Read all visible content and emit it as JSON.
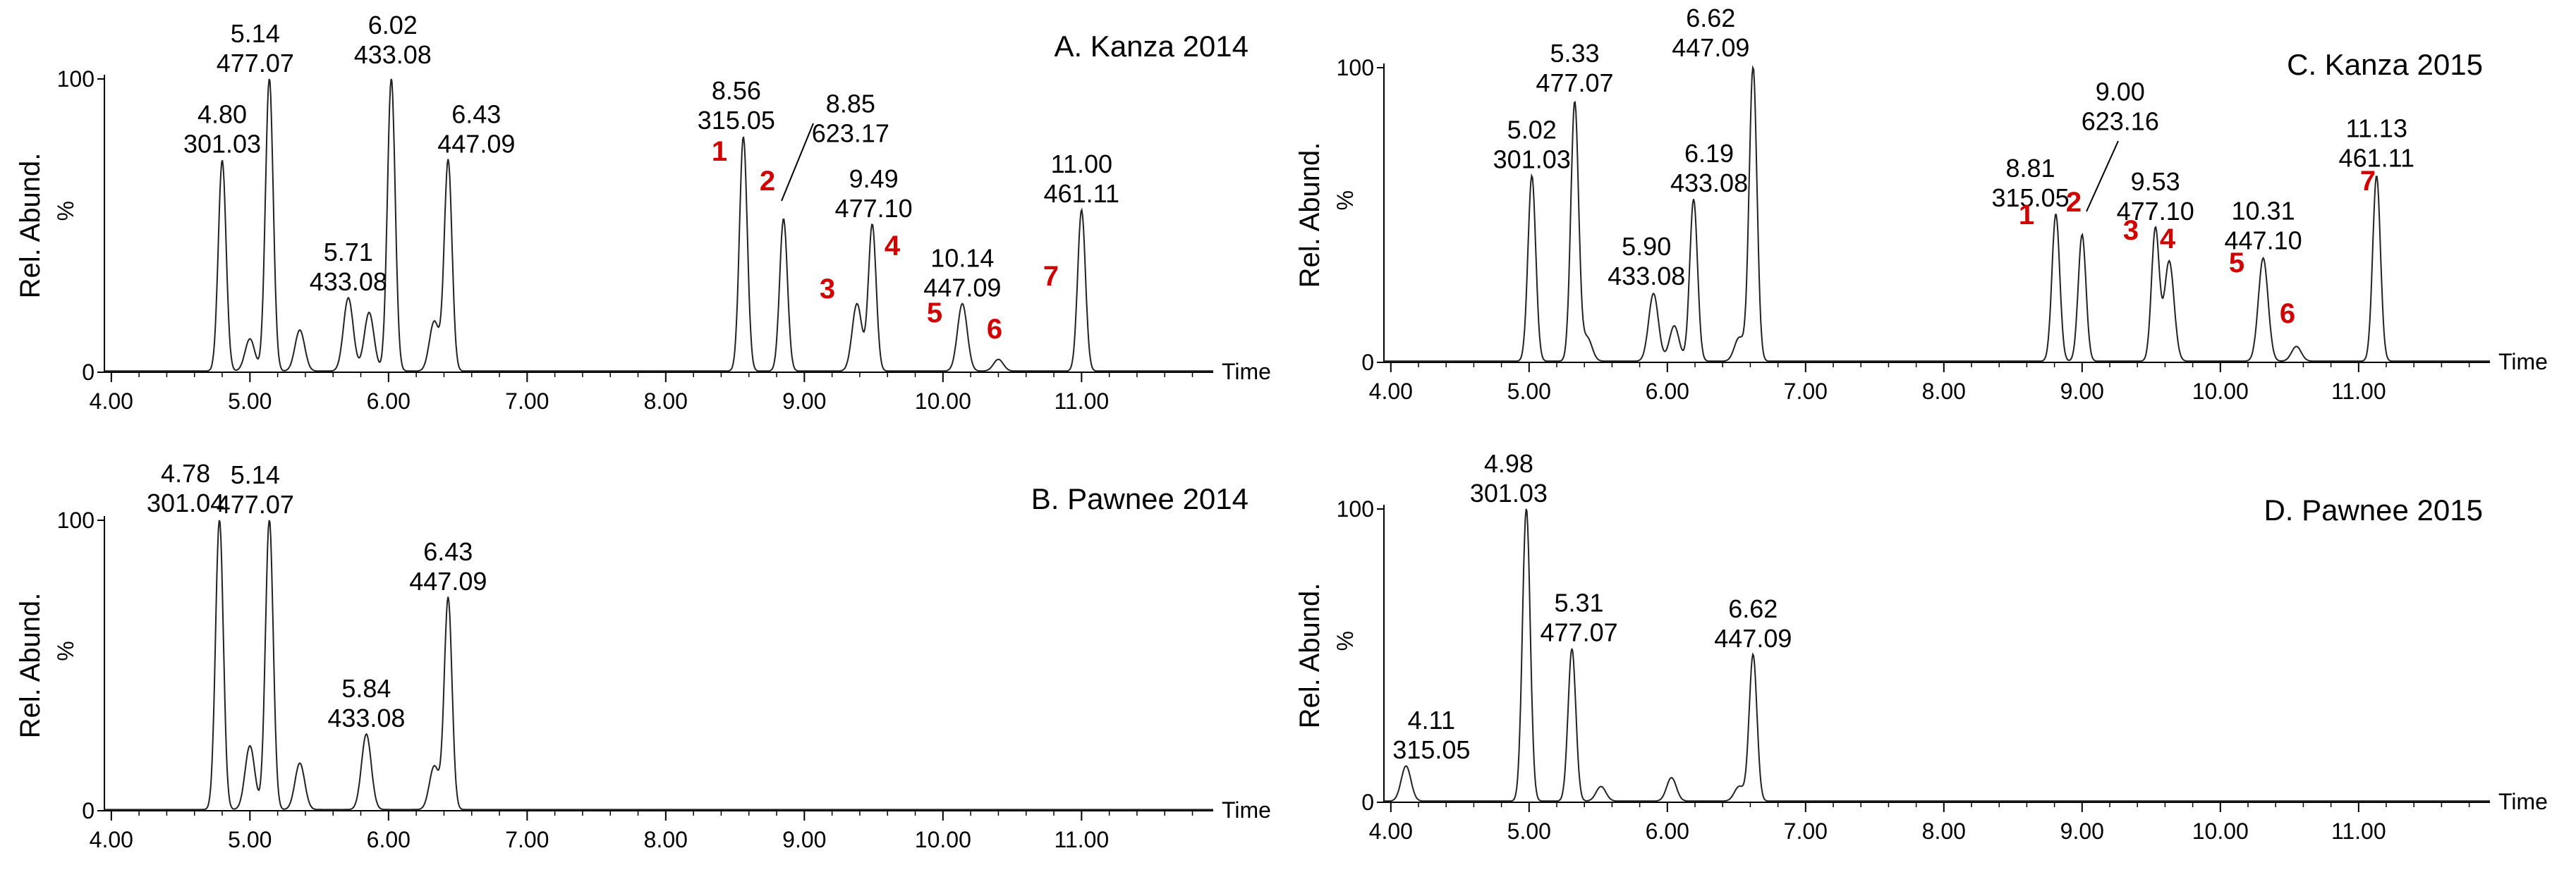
{
  "chart_data": [
    {
      "type": "line",
      "title": "A. Kanza 2014",
      "xlabel": "Time",
      "ylabel": "Rel. Abund.",
      "ylabel_unit": "%",
      "xlim": [
        3.95,
        11.95
      ],
      "ylim": [
        0,
        100
      ],
      "xticks": [
        "4.00",
        "5.00",
        "6.00",
        "7.00",
        "8.00",
        "9.00",
        "10.00",
        "11.00"
      ],
      "yticks": [
        "0",
        "100"
      ],
      "peaks": [
        {
          "x": 4.8,
          "y": 72,
          "label": [
            "4.80",
            "301.03"
          ]
        },
        {
          "x": 5.0,
          "y": 11
        },
        {
          "x": 5.14,
          "y": 100,
          "label": [
            "5.14",
            "477.07"
          ]
        },
        {
          "x": 5.36,
          "y": 14
        },
        {
          "x": 5.71,
          "y": 25,
          "label": [
            "5.71",
            "433.08"
          ]
        },
        {
          "x": 5.86,
          "y": 20
        },
        {
          "x": 6.02,
          "y": 100,
          "label": [
            "6.02",
            "433.08"
          ]
        },
        {
          "x": 6.33,
          "y": 17
        },
        {
          "x": 6.43,
          "y": 72,
          "label": [
            "6.43",
            "447.09"
          ]
        },
        {
          "x": 8.56,
          "y": 80,
          "label": [
            "8.56",
            "315.05"
          ]
        },
        {
          "x": 8.85,
          "y": 52,
          "label": [
            "8.85",
            "623.17"
          ]
        },
        {
          "x": 9.38,
          "y": 23
        },
        {
          "x": 9.49,
          "y": 50,
          "label": [
            "9.49",
            "477.10"
          ]
        },
        {
          "x": 10.14,
          "y": 23,
          "label": [
            "10.14",
            "447.09"
          ]
        },
        {
          "x": 10.4,
          "y": 4
        },
        {
          "x": 11.0,
          "y": 55,
          "label": [
            "11.00",
            "461.11"
          ]
        }
      ],
      "markers": [
        "1",
        "2",
        "3",
        "4",
        "5",
        "6",
        "7"
      ]
    },
    {
      "type": "line",
      "title": "B. Pawnee 2014",
      "xlabel": "Time",
      "ylabel": "Rel. Abund.",
      "ylabel_unit": "%",
      "xlim": [
        3.95,
        11.95
      ],
      "ylim": [
        0,
        100
      ],
      "xticks": [
        "4.00",
        "5.00",
        "6.00",
        "7.00",
        "8.00",
        "9.00",
        "10.00",
        "11.00"
      ],
      "yticks": [
        "0",
        "100"
      ],
      "peaks": [
        {
          "x": 4.78,
          "y": 100,
          "label": [
            "4.78",
            "301.04"
          ]
        },
        {
          "x": 5.0,
          "y": 22
        },
        {
          "x": 5.14,
          "y": 100,
          "label": [
            "5.14",
            "477.07"
          ]
        },
        {
          "x": 5.36,
          "y": 16
        },
        {
          "x": 5.84,
          "y": 26,
          "label": [
            "5.84",
            "433.08"
          ]
        },
        {
          "x": 6.33,
          "y": 15
        },
        {
          "x": 6.43,
          "y": 73,
          "label": [
            "6.43",
            "447.09"
          ]
        }
      ],
      "markers": []
    },
    {
      "type": "line",
      "title": "C. Kanza 2015",
      "xlabel": "Time",
      "ylabel": "Rel. Abund.",
      "ylabel_unit": "%",
      "xlim": [
        3.95,
        11.95
      ],
      "ylim": [
        0,
        100
      ],
      "xticks": [
        "4.00",
        "5.00",
        "6.00",
        "7.00",
        "8.00",
        "9.00",
        "10.00",
        "11.00"
      ],
      "yticks": [
        "0",
        "100"
      ],
      "peaks": [
        {
          "x": 5.02,
          "y": 63,
          "label": [
            "5.02",
            "301.03"
          ]
        },
        {
          "x": 5.33,
          "y": 88,
          "label": [
            "5.33",
            "477.07"
          ]
        },
        {
          "x": 5.42,
          "y": 8
        },
        {
          "x": 5.9,
          "y": 23,
          "label": [
            "5.90",
            "433.08"
          ]
        },
        {
          "x": 6.05,
          "y": 12
        },
        {
          "x": 6.19,
          "y": 55,
          "label": [
            "6.19",
            "433.08"
          ]
        },
        {
          "x": 6.52,
          "y": 8
        },
        {
          "x": 6.62,
          "y": 100,
          "label": [
            "6.62",
            "447.09"
          ]
        },
        {
          "x": 8.81,
          "y": 50,
          "label": [
            "8.81",
            "315.05"
          ]
        },
        {
          "x": 9.0,
          "y": 43,
          "label": [
            "9.00",
            "623.16"
          ]
        },
        {
          "x": 9.53,
          "y": 45,
          "label": [
            "9.53",
            "477.10"
          ]
        },
        {
          "x": 9.63,
          "y": 34
        },
        {
          "x": 10.31,
          "y": 35,
          "label": [
            "10.31",
            "447.10"
          ]
        },
        {
          "x": 10.55,
          "y": 5
        },
        {
          "x": 11.13,
          "y": 63,
          "label": [
            "11.13",
            "461.11"
          ]
        }
      ],
      "markers": [
        "1",
        "2",
        "3",
        "4",
        "5",
        "6",
        "7"
      ]
    },
    {
      "type": "line",
      "title": "D. Pawnee 2015",
      "xlabel": "Time",
      "ylabel": "Rel. Abund.",
      "ylabel_unit": "%",
      "xlim": [
        3.95,
        11.95
      ],
      "ylim": [
        0,
        100
      ],
      "xticks": [
        "4.00",
        "5.00",
        "6.00",
        "7.00",
        "8.00",
        "9.00",
        "10.00",
        "11.00"
      ],
      "yticks": [
        "0",
        "100"
      ],
      "peaks": [
        {
          "x": 4.11,
          "y": 12,
          "label": [
            "4.11",
            "315.05"
          ]
        },
        {
          "x": 4.98,
          "y": 100,
          "label": [
            "4.98",
            "301.03"
          ]
        },
        {
          "x": 5.31,
          "y": 52,
          "label": [
            "5.31",
            "477.07"
          ]
        },
        {
          "x": 5.52,
          "y": 5
        },
        {
          "x": 6.03,
          "y": 8
        },
        {
          "x": 6.52,
          "y": 5
        },
        {
          "x": 6.62,
          "y": 50,
          "label": [
            "6.62",
            "447.09"
          ]
        }
      ],
      "markers": []
    }
  ]
}
